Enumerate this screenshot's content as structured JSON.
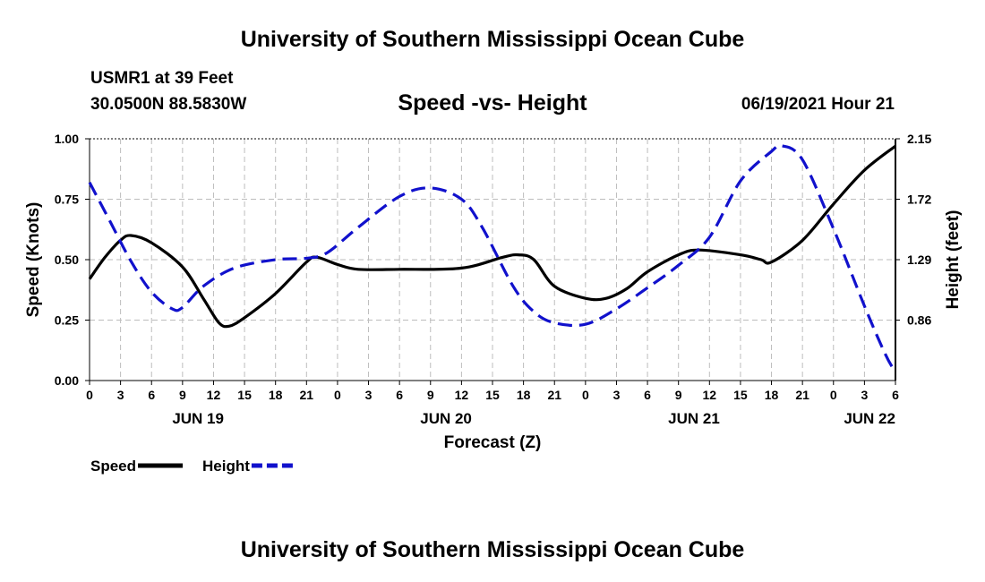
{
  "header": {
    "title": "University of Southern Mississippi Ocean Cube",
    "station": "USMR1 at 39 Feet",
    "coords": "30.0500N  88.5830W",
    "chart_title": "Speed -vs- Height",
    "datetime": "06/19/2021 Hour 21"
  },
  "footer": {
    "title": "University of Southern Mississippi Ocean Cube"
  },
  "chart_data": {
    "type": "line",
    "title": "Speed -vs- Height",
    "xlabel": "Forecast (Z)",
    "ylabel": "Speed (Knots)",
    "y2label": "Height (feet)",
    "xlim": [
      0,
      78
    ],
    "ylim": [
      0,
      1
    ],
    "y2lim": [
      0.43,
      2.15
    ],
    "x_ticks": [
      0,
      3,
      6,
      9,
      12,
      15,
      18,
      21,
      24,
      27,
      30,
      33,
      36,
      39,
      42,
      45,
      48,
      51,
      54,
      57,
      60,
      63,
      66,
      69,
      72,
      75,
      78
    ],
    "x_tick_labels": [
      "0",
      "3",
      "6",
      "9",
      "12",
      "15",
      "18",
      "21",
      "0",
      "3",
      "6",
      "9",
      "12",
      "15",
      "18",
      "21",
      "0",
      "3",
      "6",
      "9",
      "12",
      "15",
      "18",
      "21",
      "0",
      "3",
      "6"
    ],
    "date_labels": [
      {
        "x": 10.5,
        "label": "JUN 19"
      },
      {
        "x": 34.5,
        "label": "JUN 20"
      },
      {
        "x": 58.5,
        "label": "JUN 21"
      },
      {
        "x": 75.5,
        "label": "JUN 22"
      }
    ],
    "y_ticks": [
      0.0,
      0.25,
      0.5,
      0.75,
      1.0
    ],
    "y_tick_labels": [
      "0.00",
      "0.25",
      "0.50",
      "0.75",
      "1.00"
    ],
    "y2_ticks": [
      0.86,
      1.29,
      1.72,
      2.15
    ],
    "y2_tick_labels": [
      "0.86",
      "1.29",
      "1.72",
      "2.15"
    ],
    "grid": true,
    "series": [
      {
        "name": "Speed",
        "axis": "left",
        "color": "#000000",
        "dash": "solid",
        "x": [
          0,
          1.5,
          3,
          4,
          6,
          9,
          11,
          12.5,
          13.5,
          15,
          18,
          21,
          22,
          24,
          26,
          30,
          36,
          40,
          41.5,
          43,
          45,
          48,
          50,
          52,
          54,
          57,
          59,
          63,
          65,
          66,
          69,
          72,
          75,
          78
        ],
        "values": [
          0.42,
          0.51,
          0.58,
          0.6,
          0.57,
          0.47,
          0.34,
          0.24,
          0.225,
          0.26,
          0.36,
          0.49,
          0.51,
          0.48,
          0.46,
          0.46,
          0.465,
          0.51,
          0.52,
          0.5,
          0.39,
          0.34,
          0.34,
          0.38,
          0.45,
          0.52,
          0.54,
          0.52,
          0.5,
          0.49,
          0.58,
          0.73,
          0.87,
          0.97
        ]
      },
      {
        "name": "Height",
        "axis": "right",
        "color": "#1111cc",
        "dash": "dashed",
        "x": [
          0,
          2,
          4,
          6,
          8,
          9,
          11,
          14,
          18,
          21,
          23,
          26,
          30,
          33,
          36,
          38,
          41,
          43,
          45,
          48,
          51,
          54,
          57,
          60,
          63,
          66,
          67,
          69,
          72,
          75,
          77,
          78
        ],
        "values": [
          1.84,
          1.56,
          1.28,
          1.06,
          0.94,
          0.95,
          1.1,
          1.23,
          1.29,
          1.3,
          1.34,
          1.52,
          1.74,
          1.8,
          1.72,
          1.52,
          1.1,
          0.92,
          0.84,
          0.83,
          0.94,
          1.09,
          1.25,
          1.45,
          1.85,
          2.06,
          2.1,
          2.0,
          1.51,
          0.96,
          0.62,
          0.49
        ]
      }
    ],
    "legend": {
      "placement": "bottom-left",
      "entries": [
        "Speed",
        "Height"
      ]
    }
  }
}
